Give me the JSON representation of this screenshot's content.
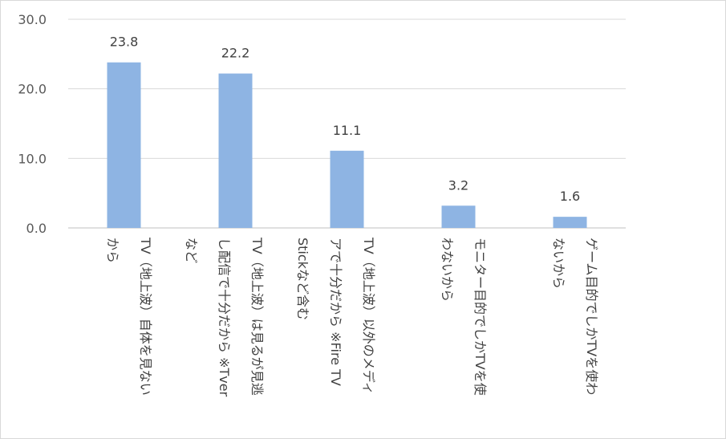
{
  "chart_data": {
    "type": "bar",
    "title": "",
    "xlabel": "",
    "ylabel": "",
    "ylim": [
      0,
      30
    ],
    "yticks": [
      0,
      10,
      20,
      30
    ],
    "ytick_labels": [
      "0.0",
      "10.0",
      "20.0",
      "30.0"
    ],
    "grid": "horizontal",
    "legend": "none",
    "bar_color": "#8eb4e3",
    "data_labels": [
      "23.8",
      "22.2",
      "11.1",
      "3.2",
      "1.6"
    ],
    "values": [
      23.8,
      22.2,
      11.1,
      3.2,
      1.6
    ],
    "categories": [
      "TV（地上波）自体を見ないから",
      "TV（地上波）は見るが見逃し配信で十分だから ※Tverなど",
      "TV（地上波）以外のメディアで十分だから ※Fire TV Stickなど含む",
      "モニター目的でしかTVを使わないから",
      "ゲーム目的でしかTVを使わないから"
    ],
    "category_label_lines": [
      [
        "TV（地上波）自体を見ない",
        "から"
      ],
      [
        "TV（地上波）は見るが見逃",
        "し配信で十分だから ※Tver",
        "など"
      ],
      [
        "TV（地上波）以外のメディ",
        "アで十分だから ※Fire TV",
        "Stickなど含む"
      ],
      [
        "モニター目的でしかTVを使",
        "わないから"
      ],
      [
        "ゲーム目的でしかTVを使わ",
        "ないから"
      ]
    ]
  }
}
